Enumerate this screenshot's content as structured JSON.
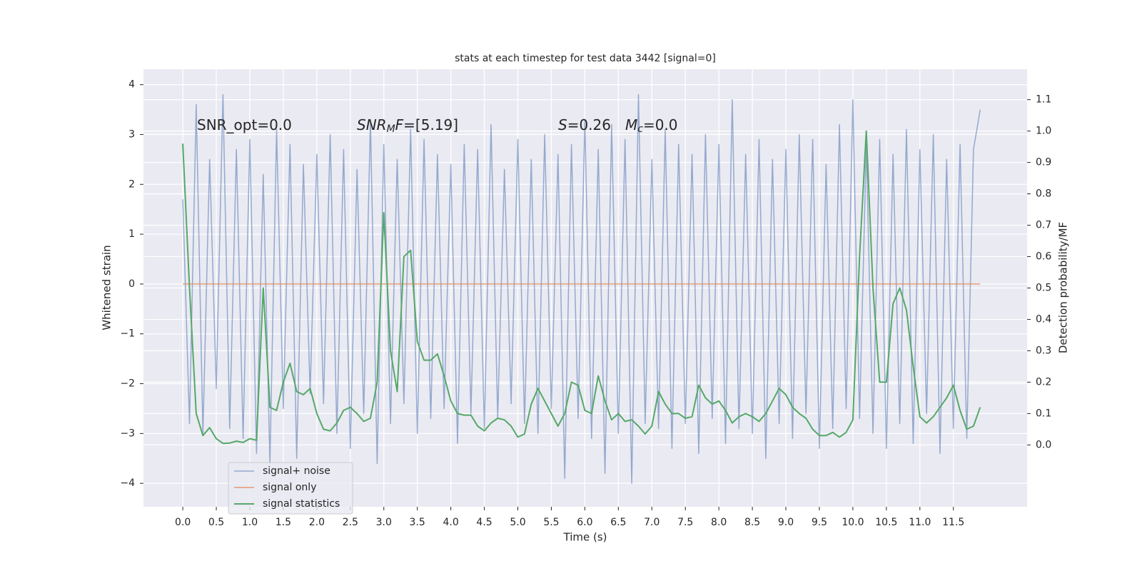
{
  "chart_data": {
    "type": "line",
    "title": "stats at each timestep for test data 3442 [signal=0]",
    "xlabel": "Time (s)",
    "ylabel": "Whitened strain",
    "y2label": "Detection probability/MF",
    "annotations": [
      [
        {
          "text": "SNR_opt=0.0",
          "style": "normal"
        }
      ],
      [
        {
          "text": "SNR",
          "style": "italic"
        },
        {
          "text": "M",
          "style": "sub"
        },
        {
          "text": "F",
          "style": "italic"
        },
        {
          "text": "=[5.19]",
          "style": "normal"
        }
      ],
      [
        {
          "text": "S",
          "style": "italic"
        },
        {
          "text": "=0.26",
          "style": "normal"
        }
      ],
      [
        {
          "text": "M",
          "style": "italic"
        },
        {
          "text": "c",
          "style": "sub"
        },
        {
          "text": "=0.0",
          "style": "normal"
        }
      ]
    ],
    "grid": true,
    "legend": "lower left",
    "xlim": [
      -0.587,
      12.6
    ],
    "ylim": [
      -4.47,
      4.31
    ],
    "y2lim": [
      -0.197,
      1.197
    ],
    "xticks": [
      {
        "value": 0,
        "label": "0.0"
      },
      {
        "value": 0.5,
        "label": "0.5"
      },
      {
        "value": 1,
        "label": "1.0"
      },
      {
        "value": 1.5,
        "label": "1.5"
      },
      {
        "value": 2,
        "label": "2.0"
      },
      {
        "value": 2.5,
        "label": "2.5"
      },
      {
        "value": 3,
        "label": "3.0"
      },
      {
        "value": 3.5,
        "label": "3.5"
      },
      {
        "value": 4,
        "label": "4.0"
      },
      {
        "value": 4.5,
        "label": "4.5"
      },
      {
        "value": 5,
        "label": "5.0"
      },
      {
        "value": 5.5,
        "label": "5.5"
      },
      {
        "value": 6,
        "label": "6.0"
      },
      {
        "value": 6.5,
        "label": "6.5"
      },
      {
        "value": 7,
        "label": "7.0"
      },
      {
        "value": 7.5,
        "label": "7.5"
      },
      {
        "value": 8,
        "label": "8.0"
      },
      {
        "value": 8.5,
        "label": "8.5"
      },
      {
        "value": 9,
        "label": "9.0"
      },
      {
        "value": 9.5,
        "label": "9.5"
      },
      {
        "value": 10,
        "label": "10.0"
      },
      {
        "value": 10.5,
        "label": "10.5"
      },
      {
        "value": 11,
        "label": "11.0"
      },
      {
        "value": 11.5,
        "label": "11.5"
      }
    ],
    "yticks": [
      {
        "value": -4,
        "label": "−4"
      },
      {
        "value": -3,
        "label": "−3"
      },
      {
        "value": -2,
        "label": "−2"
      },
      {
        "value": -1,
        "label": "−1"
      },
      0,
      1,
      2,
      3,
      4
    ],
    "y2ticks": [
      {
        "value": 0,
        "label": "0.0"
      },
      {
        "value": 0.1,
        "label": "0.1"
      },
      {
        "value": 0.2,
        "label": "0.2"
      },
      {
        "value": 0.3,
        "label": "0.3"
      },
      {
        "value": 0.4,
        "label": "0.4"
      },
      {
        "value": 0.5,
        "label": "0.5"
      },
      {
        "value": 0.6,
        "label": "0.6"
      },
      {
        "value": 0.7,
        "label": "0.7"
      },
      {
        "value": 0.8,
        "label": "0.8"
      },
      {
        "value": 0.9,
        "label": "0.9"
      },
      {
        "value": 1,
        "label": "1.0"
      },
      {
        "value": 1.1,
        "label": "1.1"
      }
    ],
    "x": [
      0,
      0.1,
      0.2,
      0.3,
      0.4,
      0.5,
      0.6,
      0.7,
      0.8,
      0.9,
      1,
      1.1,
      1.2,
      1.3,
      1.4,
      1.5,
      1.6,
      1.7,
      1.8,
      1.9,
      2,
      2.1,
      2.2,
      2.3,
      2.4,
      2.5,
      2.6,
      2.7,
      2.8,
      2.9,
      3,
      3.1,
      3.2,
      3.3,
      3.4,
      3.5,
      3.6,
      3.7,
      3.8,
      3.9,
      4,
      4.1,
      4.2,
      4.3,
      4.4,
      4.5,
      4.6,
      4.7,
      4.8,
      4.9,
      5,
      5.1,
      5.2,
      5.3,
      5.4,
      5.5,
      5.6,
      5.7,
      5.8,
      5.9,
      6,
      6.1,
      6.2,
      6.3,
      6.4,
      6.5,
      6.6,
      6.7,
      6.8,
      6.9,
      7,
      7.1,
      7.2,
      7.3,
      7.4,
      7.5,
      7.6,
      7.7,
      7.8,
      7.9,
      8,
      8.1,
      8.2,
      8.3,
      8.4,
      8.5,
      8.6,
      8.7,
      8.8,
      8.9,
      9,
      9.1,
      9.2,
      9.3,
      9.4,
      9.5,
      9.6,
      9.7,
      9.8,
      9.9,
      10,
      10.1,
      10.2,
      10.3,
      10.4,
      10.5,
      10.6,
      10.7,
      10.8,
      10.9,
      11,
      11.1,
      11.2,
      11.3,
      11.4,
      11.5,
      11.6,
      11.7,
      11.8,
      11.9
    ],
    "series": [
      {
        "name": "signal+ noise",
        "color": "#4c72b0",
        "axis": "y",
        "values": [
          1.7,
          -2.8,
          3.6,
          -3.0,
          2.5,
          -2.1,
          3.8,
          -2.9,
          2.7,
          -3.1,
          2.9,
          -3.4,
          2.2,
          -3.6,
          3.1,
          -2.5,
          2.8,
          -3.5,
          2.4,
          -2.2,
          2.6,
          -2.4,
          3.0,
          -3.0,
          2.7,
          -3.3,
          2.3,
          -2.6,
          3.3,
          -3.6,
          2.8,
          -2.8,
          2.5,
          -2.4,
          3.1,
          -3.0,
          2.9,
          -2.7,
          2.6,
          -2.5,
          2.4,
          -3.2,
          2.8,
          -2.6,
          2.7,
          -2.9,
          3.2,
          -2.7,
          2.3,
          -2.4,
          2.9,
          -2.8,
          2.5,
          -3.0,
          3.0,
          -2.5,
          2.6,
          -3.9,
          2.8,
          -2.7,
          3.3,
          -3.1,
          2.7,
          -3.8,
          3.2,
          -3.0,
          2.9,
          -4.0,
          3.8,
          -2.8,
          2.5,
          -2.9,
          3.1,
          -3.3,
          2.8,
          -2.8,
          2.6,
          -3.4,
          3.0,
          -2.7,
          2.8,
          -3.2,
          3.7,
          -2.9,
          2.6,
          -3.0,
          2.9,
          -3.5,
          2.5,
          -2.8,
          2.7,
          -3.1,
          3.0,
          -2.6,
          2.9,
          -3.3,
          2.4,
          -2.9,
          3.2,
          -2.5,
          3.7,
          -2.7,
          2.8,
          -3.0,
          2.9,
          -3.3,
          2.6,
          -2.8,
          3.1,
          -3.2,
          2.7,
          -2.6,
          3.0,
          -3.4,
          2.5,
          -2.9,
          2.8,
          -3.1,
          2.7,
          3.5
        ]
      },
      {
        "name": "signal only",
        "color": "#dd8452",
        "axis": "y",
        "values": [
          0,
          0,
          0,
          0,
          0,
          0,
          0,
          0,
          0,
          0,
          0,
          0,
          0,
          0,
          0,
          0,
          0,
          0,
          0,
          0,
          0,
          0,
          0,
          0,
          0,
          0,
          0,
          0,
          0,
          0,
          0,
          0,
          0,
          0,
          0,
          0,
          0,
          0,
          0,
          0,
          0,
          0,
          0,
          0,
          0,
          0,
          0,
          0,
          0,
          0,
          0,
          0,
          0,
          0,
          0,
          0,
          0,
          0,
          0,
          0,
          0,
          0,
          0,
          0,
          0,
          0,
          0,
          0,
          0,
          0,
          0,
          0,
          0,
          0,
          0,
          0,
          0,
          0,
          0,
          0,
          0,
          0,
          0,
          0,
          0,
          0,
          0,
          0,
          0,
          0,
          0,
          0,
          0,
          0,
          0,
          0,
          0,
          0,
          0,
          0,
          0,
          0,
          0,
          0,
          0,
          0,
          0,
          0,
          0,
          0,
          0,
          0,
          0,
          0,
          0,
          0,
          0,
          0,
          0,
          0
        ]
      },
      {
        "name": "signal statistics",
        "color": "#55a868",
        "axis": "y2",
        "values": [
          0.96,
          0.5,
          0.1,
          0.03,
          0.055,
          0.02,
          0.005,
          0.006,
          0.012,
          0.008,
          0.02,
          0.015,
          0.5,
          0.12,
          0.11,
          0.2,
          0.26,
          0.17,
          0.16,
          0.18,
          0.1,
          0.05,
          0.045,
          0.07,
          0.11,
          0.12,
          0.1,
          0.075,
          0.085,
          0.2,
          0.74,
          0.3,
          0.17,
          0.6,
          0.62,
          0.33,
          0.27,
          0.27,
          0.29,
          0.22,
          0.14,
          0.1,
          0.095,
          0.095,
          0.06,
          0.045,
          0.07,
          0.085,
          0.08,
          0.06,
          0.025,
          0.035,
          0.13,
          0.18,
          0.14,
          0.1,
          0.06,
          0.1,
          0.2,
          0.19,
          0.11,
          0.1,
          0.22,
          0.14,
          0.08,
          0.1,
          0.075,
          0.08,
          0.06,
          0.035,
          0.06,
          0.17,
          0.13,
          0.1,
          0.1,
          0.085,
          0.09,
          0.19,
          0.15,
          0.13,
          0.14,
          0.11,
          0.07,
          0.09,
          0.1,
          0.09,
          0.075,
          0.1,
          0.14,
          0.18,
          0.16,
          0.12,
          0.1,
          0.085,
          0.05,
          0.03,
          0.03,
          0.04,
          0.025,
          0.04,
          0.08,
          0.6,
          1.0,
          0.5,
          0.2,
          0.2,
          0.45,
          0.5,
          0.43,
          0.25,
          0.09,
          0.07,
          0.09,
          0.12,
          0.15,
          0.19,
          0.11,
          0.05,
          0.06,
          0.12
        ]
      }
    ]
  }
}
